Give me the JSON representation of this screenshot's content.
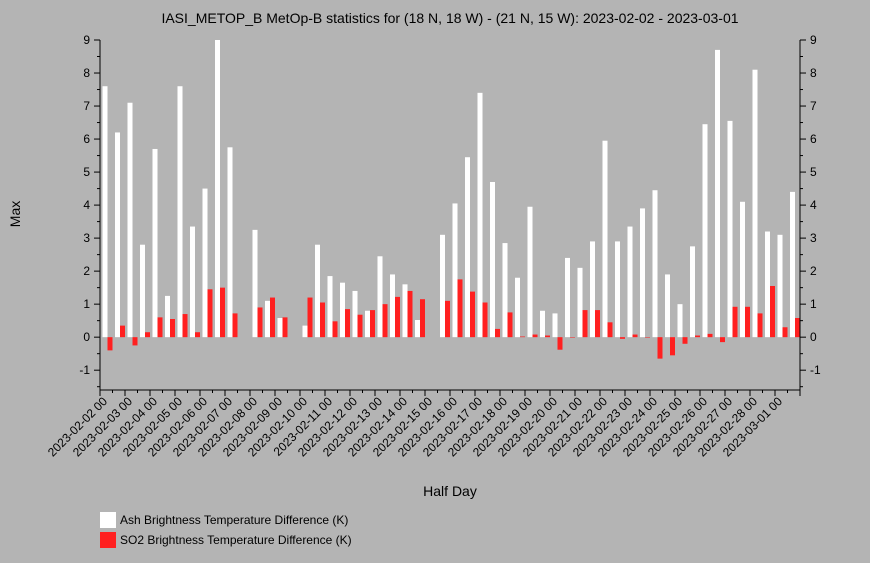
{
  "chart_data": {
    "type": "bar",
    "title": "IASI_METOP_B MetOp-B statistics for (18 N, 18 W) - (21 N, 15 W): 2023-02-02 - 2023-03-01",
    "xlabel": "Half Day",
    "ylabel": "Max",
    "ylim": [
      -1.6,
      9
    ],
    "yticks": [
      -1,
      0,
      1,
      2,
      3,
      4,
      5,
      6,
      7,
      8,
      9
    ],
    "x_tick_labels": [
      "2023-02-02 00",
      "2023-02-03 00",
      "2023-02-04 00",
      "2023-02-05 00",
      "2023-02-06 00",
      "2023-02-07 00",
      "2023-02-08 00",
      "2023-02-09 00",
      "2023-02-10 00",
      "2023-02-11 00",
      "2023-02-12 00",
      "2023-02-13 00",
      "2023-02-14 00",
      "2023-02-15 00",
      "2023-02-16 00",
      "2023-02-17 00",
      "2023-02-18 00",
      "2023-02-19 00",
      "2023-02-20 00",
      "2023-02-21 00",
      "2023-02-22 00",
      "2023-02-23 00",
      "2023-02-24 00",
      "2023-02-25 00",
      "2023-02-26 00",
      "2023-02-27 00",
      "2023-02-28 00",
      "2023-03-01 00"
    ],
    "categories": [
      "2023-02-02 00",
      "2023-02-02 12",
      "2023-02-03 00",
      "2023-02-03 12",
      "2023-02-04 00",
      "2023-02-04 12",
      "2023-02-05 00",
      "2023-02-05 12",
      "2023-02-06 00",
      "2023-02-06 12",
      "2023-02-07 00",
      "2023-02-07 12",
      "2023-02-08 00",
      "2023-02-08 12",
      "2023-02-09 00",
      "2023-02-09 12",
      "2023-02-10 00",
      "2023-02-10 12",
      "2023-02-11 00",
      "2023-02-11 12",
      "2023-02-12 00",
      "2023-02-12 12",
      "2023-02-13 00",
      "2023-02-13 12",
      "2023-02-14 00",
      "2023-02-14 12",
      "2023-02-15 00",
      "2023-02-15 12",
      "2023-02-16 00",
      "2023-02-16 12",
      "2023-02-17 00",
      "2023-02-17 12",
      "2023-02-18 00",
      "2023-02-18 12",
      "2023-02-19 00",
      "2023-02-19 12",
      "2023-02-20 00",
      "2023-02-20 12",
      "2023-02-21 00",
      "2023-02-21 12",
      "2023-02-22 00",
      "2023-02-22 12",
      "2023-02-23 00",
      "2023-02-23 12",
      "2023-02-24 00",
      "2023-02-24 12",
      "2023-02-25 00",
      "2023-02-25 12",
      "2023-02-26 00",
      "2023-02-26 12",
      "2023-02-27 00",
      "2023-02-27 12",
      "2023-02-28 00",
      "2023-02-28 12",
      "2023-03-01 00",
      "2023-03-01 12"
    ],
    "series": [
      {
        "name": "Ash Brightness Temperature Difference (K)",
        "color": "#ffffff",
        "values": [
          7.6,
          6.2,
          7.1,
          2.8,
          5.7,
          1.25,
          7.6,
          3.35,
          4.5,
          9.0,
          5.75,
          null,
          3.25,
          1.1,
          0.58,
          null,
          0.35,
          2.8,
          1.85,
          1.65,
          1.4,
          0.8,
          2.45,
          1.9,
          1.6,
          0.52,
          null,
          3.1,
          4.05,
          5.45,
          7.4,
          4.7,
          2.85,
          1.8,
          3.95,
          0.8,
          0.72,
          2.4,
          2.1,
          2.9,
          5.95,
          2.9,
          3.35,
          3.9,
          4.45,
          1.9,
          1.0,
          2.75,
          6.45,
          8.7,
          6.55,
          4.1,
          8.1,
          3.2,
          3.1,
          4.4
        ]
      },
      {
        "name": "SO2 Brightness Temperature Difference (K)",
        "color": "#ff2020",
        "values": [
          -0.4,
          0.35,
          -0.25,
          0.15,
          0.6,
          0.55,
          0.7,
          0.15,
          1.45,
          1.5,
          0.72,
          null,
          0.9,
          1.2,
          0.6,
          null,
          1.2,
          1.05,
          0.48,
          0.85,
          0.68,
          0.82,
          1.0,
          1.22,
          1.4,
          1.15,
          null,
          1.1,
          1.75,
          1.38,
          1.05,
          0.25,
          0.75,
          0.02,
          0.08,
          0.05,
          -0.38,
          0.0,
          0.82,
          0.82,
          0.45,
          -0.05,
          0.08,
          0.0,
          -0.65,
          -0.55,
          -0.2,
          0.05,
          0.1,
          -0.15,
          0.92,
          0.92,
          0.72,
          1.55,
          0.3,
          0.58
        ]
      }
    ],
    "grid": false,
    "legend_position": "bottom-left"
  }
}
